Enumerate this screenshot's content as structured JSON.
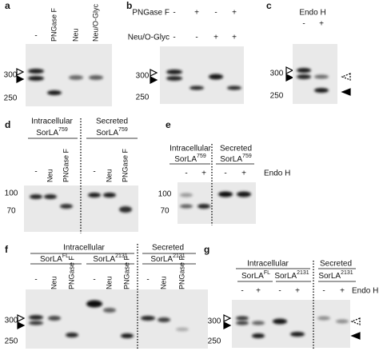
{
  "panels": [
    {
      "label": "a",
      "lanes": [
        "-",
        "PNGase F",
        "Neu",
        "Neu/O-Glyc"
      ],
      "markers": [
        "300",
        "250"
      ]
    },
    {
      "label": "b",
      "rows": [
        {
          "name": "PNGase F",
          "signs": [
            "-",
            "+",
            "-",
            "+"
          ]
        },
        {
          "name": "Neu/O-Glyc",
          "signs": [
            "-",
            "-",
            "+",
            "+"
          ]
        }
      ],
      "markers": [
        "300",
        "250"
      ]
    },
    {
      "label": "c",
      "treatment": "Endo H",
      "signs": [
        "-",
        "+"
      ],
      "markers": [
        "300",
        "250"
      ]
    },
    {
      "label": "d",
      "groups": [
        {
          "compartment": "Intracellular",
          "protein": {
            "name": "SorLA",
            "sup": "759"
          }
        },
        {
          "compartment": "Secreted",
          "protein": {
            "name": "SorLA",
            "sup": "759"
          }
        }
      ],
      "lanes": [
        "-",
        "Neu",
        "PNGase F",
        "-",
        "Neu",
        "PNGase F"
      ],
      "markers": [
        "100",
        "70"
      ]
    },
    {
      "label": "e",
      "groups": [
        {
          "compartment": "Intracellular",
          "protein": {
            "name": "SorLA",
            "sup": "759"
          }
        },
        {
          "compartment": "Secreted",
          "protein": {
            "name": "SorLA",
            "sup": "759"
          }
        }
      ],
      "signs": [
        "-",
        "+",
        "-",
        "+"
      ],
      "treatment": "Endo H",
      "markers": [
        "100",
        "70"
      ]
    },
    {
      "label": "f",
      "header": "Intracellular",
      "groups": [
        {
          "protein": {
            "name": "SorLA",
            "sup": "FL"
          }
        },
        {
          "protein": {
            "name": "SorLA",
            "sup": "2131"
          }
        },
        {
          "compartment": "Secreted",
          "protein": {
            "name": "SorLA",
            "sup": "2131"
          }
        }
      ],
      "lanes": [
        "-",
        "Neu",
        "PNGase F",
        "-",
        "Neu",
        "PNGase F",
        "-",
        "Neu",
        "PNGase F"
      ],
      "markers": [
        "300",
        "250"
      ]
    },
    {
      "label": "g",
      "header": "Intracellular",
      "groups": [
        {
          "protein": {
            "name": "SorLA",
            "sup": "FL"
          }
        },
        {
          "protein": {
            "name": "SorLA",
            "sup": "2131"
          }
        },
        {
          "compartment": "Secreted",
          "protein": {
            "name": "SorLA",
            "sup": "2131"
          }
        }
      ],
      "signs": [
        "-",
        "+",
        "-",
        "+",
        "-",
        "+"
      ],
      "treatment": "Endo H",
      "markers": [
        "300",
        "250"
      ]
    }
  ]
}
